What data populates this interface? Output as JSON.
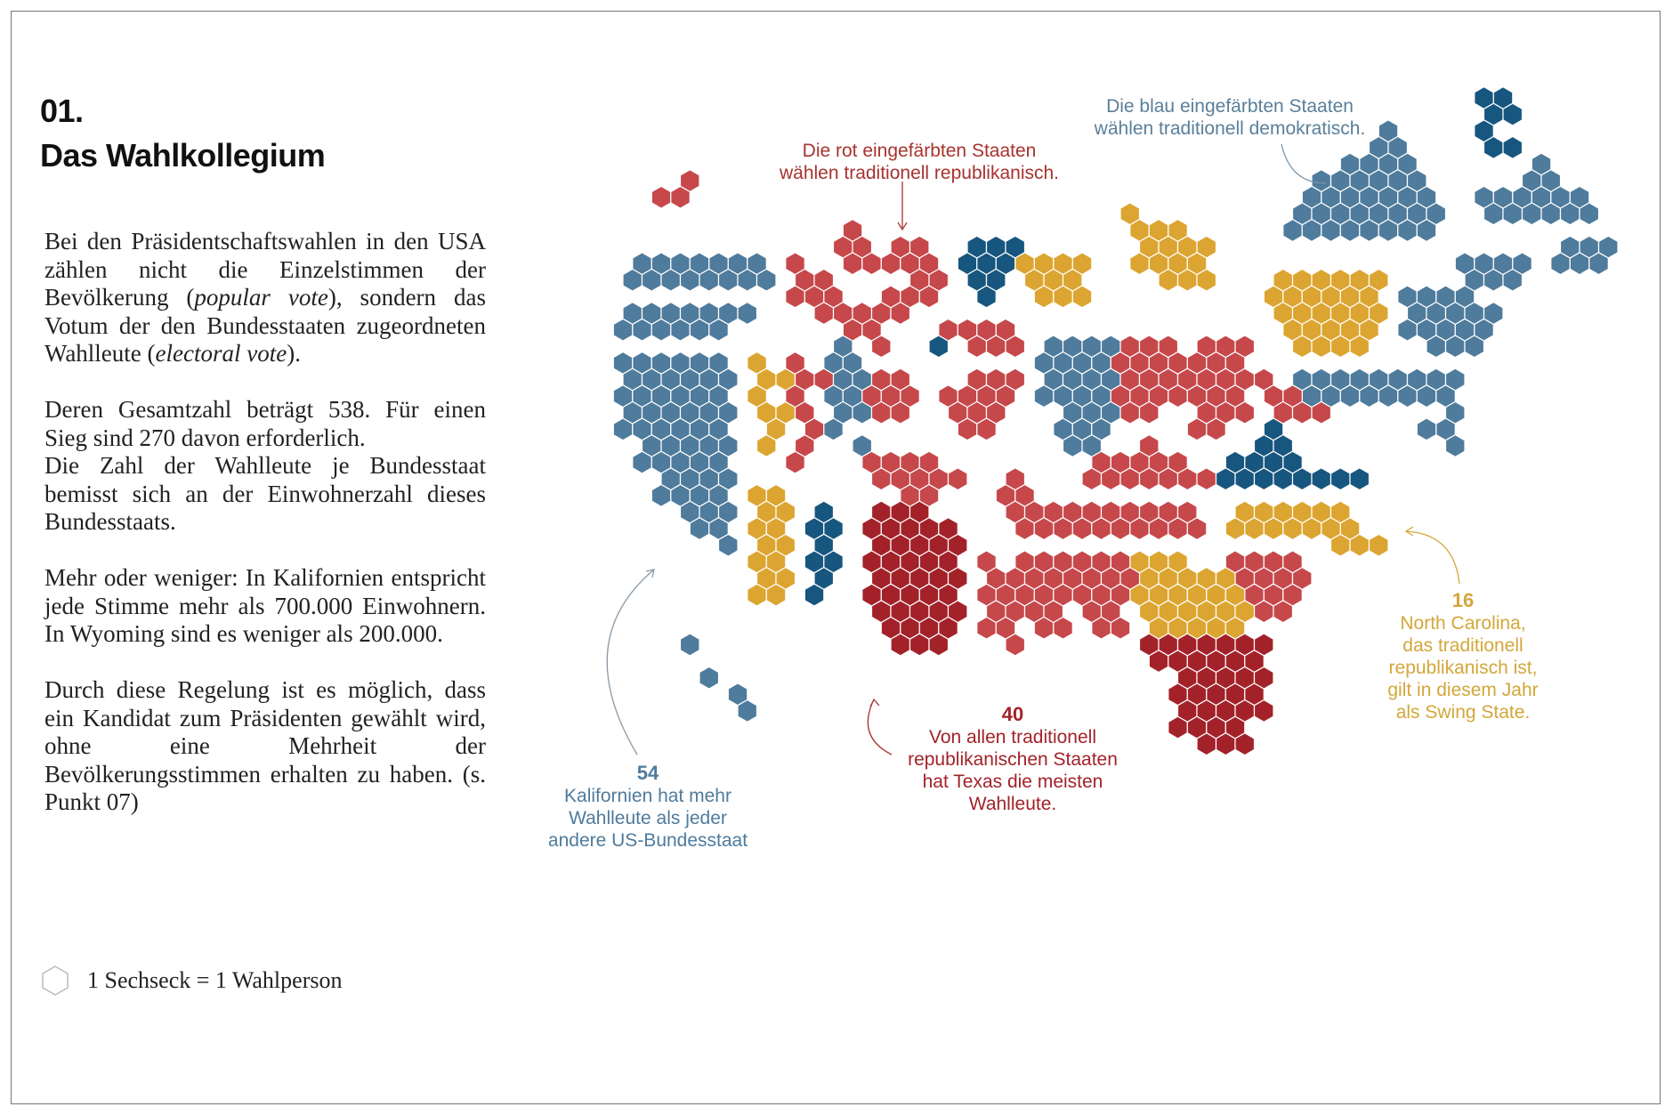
{
  "header": {
    "number": "01.",
    "title": "Das Wahlkollegium"
  },
  "body": {
    "p1": [
      "Bei den Präsidentschaftswahlen in den USA zählen nicht die Einzelstimmen der Bevölkerung (",
      "popular vote",
      "), sondern das Votum der den Bundesstaaten zugeordneten Wahlleute (",
      "electoral vote",
      ")."
    ],
    "p2": [
      "Deren Gesamtzahl beträgt 538. Für einen Sieg sind 270 davon erforderlich.",
      "Die Zahl der Wahlleute je Bundesstaat bemisst sich an der Einwohnerzahl dieses Bundesstaats."
    ],
    "p3": "Mehr oder weniger: In Kalifornien entspricht jede Stimme mehr als 700.000 Einwohnern. In Wyoming sind es weniger als 200.000.",
    "p4": "Durch diese Regelung ist es möglich, dass ein Kandidat zum Präsidenten gewählt wird, ohne eine Mehrheit der Bevölkerungsstimmen erhalten zu haben. (s. Punkt 07)"
  },
  "legend": "1 Sechseck = 1 Wahlperson",
  "map": {
    "blue_note": [
      "Die blau eingefärbten Staaten",
      "wählen traditionell demokratisch."
    ],
    "red_note": [
      "Die rot eingefärbten Staaten",
      "wählen traditionell republikanisch."
    ],
    "california": {
      "number": 54,
      "lines": [
        "Kalifornien hat mehr",
        "Wahlleute als jeder",
        "andere US-Bundesstaat"
      ]
    },
    "texas": {
      "number": 40,
      "lines": [
        "Von allen traditionell",
        "republikanischen Staaten",
        "hat Texas die meisten",
        "Wahlleute."
      ]
    },
    "north_carolina": {
      "number": 16,
      "lines": [
        "North Carolina,",
        "das traditionell",
        "republikanisch ist,",
        "gilt in diesem Jahr",
        "als Swing State."
      ]
    }
  }
}
